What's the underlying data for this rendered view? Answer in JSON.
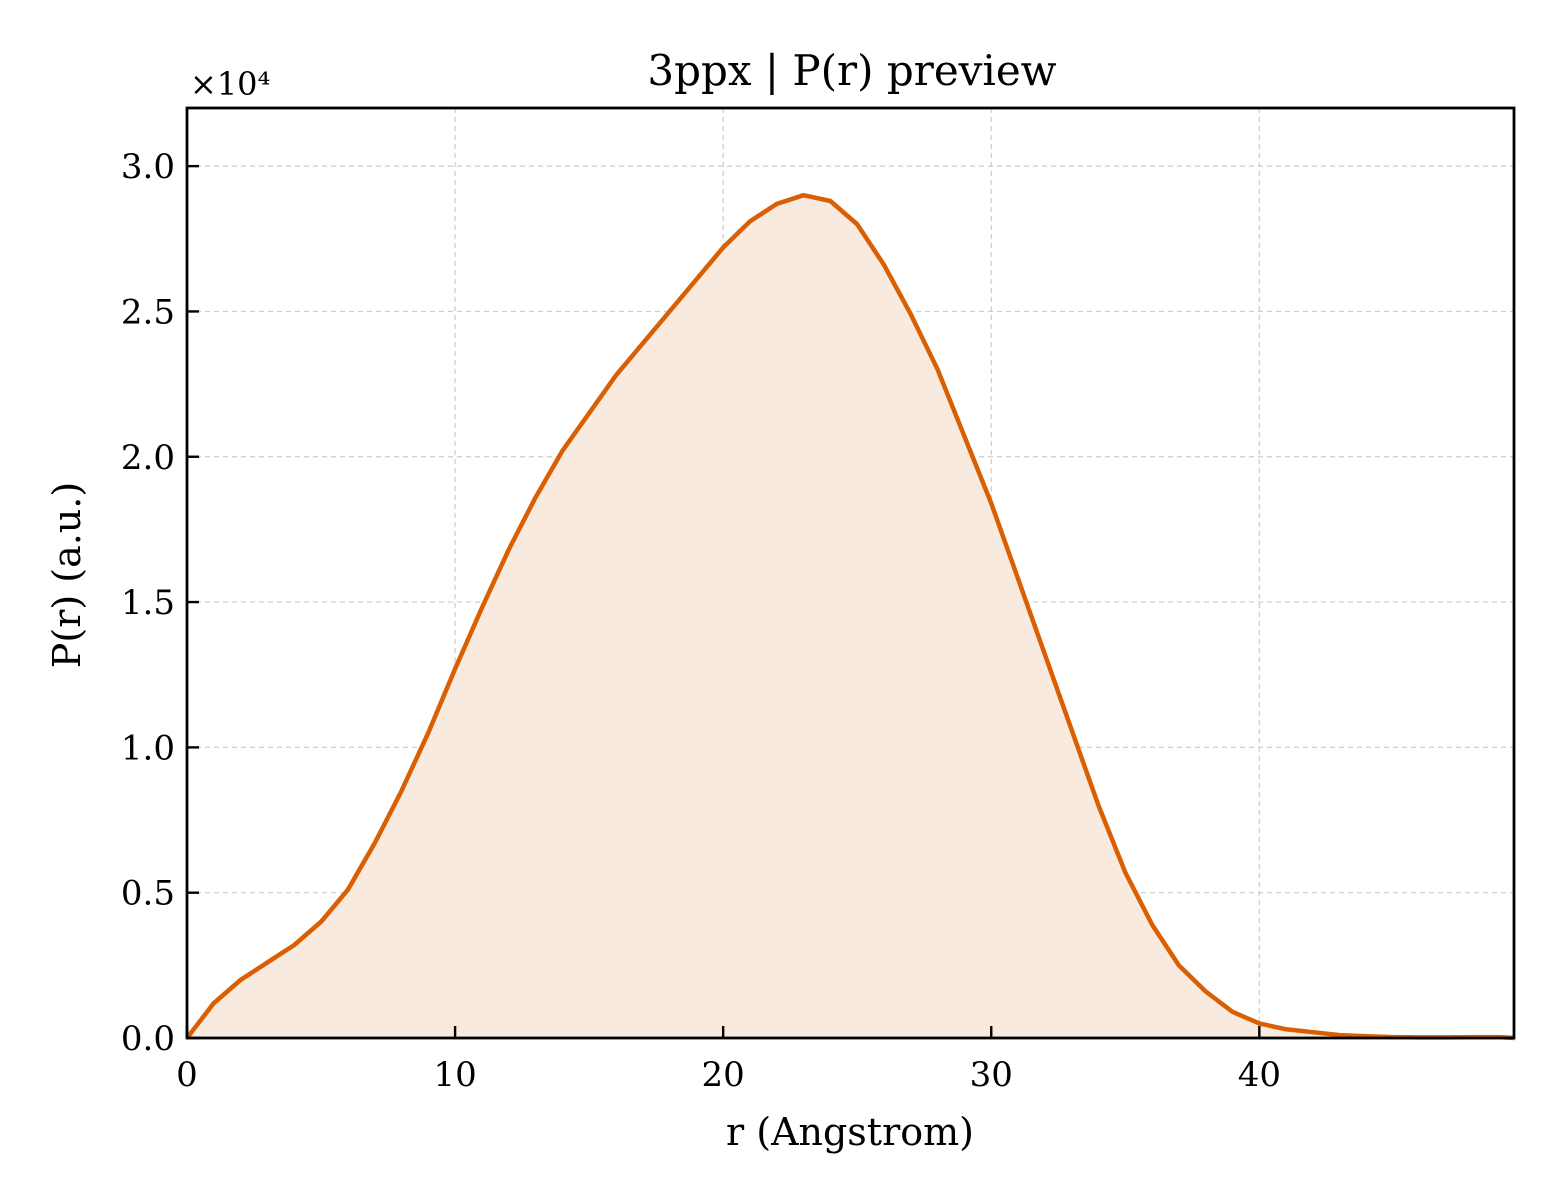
{
  "chart_data": {
    "type": "area",
    "title": "3ppx | P(r) preview",
    "xlabel": "r (Angstrom)",
    "ylabel": "P(r) (a.u.)",
    "y_offset_label": "×10⁴",
    "xlim": [
      0,
      49.5
    ],
    "ylim": [
      0,
      3.2
    ],
    "y_scale_multiplier": 10000,
    "xticks": [
      0,
      10,
      20,
      30,
      40
    ],
    "xtick_labels": [
      "0",
      "10",
      "20",
      "30",
      "40"
    ],
    "yticks": [
      0,
      0.5,
      1.0,
      1.5,
      2.0,
      2.5,
      3.0
    ],
    "ytick_labels": [
      "0.0",
      "0.5",
      "1.0",
      "1.5",
      "2.0",
      "2.5",
      "3.0"
    ],
    "grid": true,
    "line_color": "#d95f02",
    "fill_color": "#f9eadf",
    "series": [
      {
        "x": [
          0,
          0.5,
          1,
          2,
          3,
          4,
          5,
          6,
          7,
          8,
          9,
          10,
          11,
          12,
          13,
          14,
          15,
          16,
          17,
          18,
          19,
          20,
          21,
          22,
          23,
          24,
          25,
          26,
          27,
          28,
          29,
          30,
          31,
          32,
          33,
          34,
          35,
          36,
          37,
          38,
          39,
          40,
          41,
          42,
          43,
          44,
          45,
          46,
          47,
          48,
          49,
          49.5
        ],
        "y": [
          0,
          0.06,
          0.12,
          0.2,
          0.26,
          0.32,
          0.4,
          0.51,
          0.67,
          0.85,
          1.05,
          1.27,
          1.48,
          1.68,
          1.86,
          2.02,
          2.15,
          2.28,
          2.39,
          2.5,
          2.61,
          2.72,
          2.81,
          2.87,
          2.9,
          2.88,
          2.8,
          2.66,
          2.49,
          2.3,
          2.07,
          1.84,
          1.58,
          1.32,
          1.06,
          0.8,
          0.57,
          0.39,
          0.25,
          0.16,
          0.09,
          0.05,
          0.03,
          0.02,
          0.01,
          0.006,
          0.003,
          0.002,
          0.002,
          0.003,
          0.003,
          0
        ]
      }
    ]
  }
}
